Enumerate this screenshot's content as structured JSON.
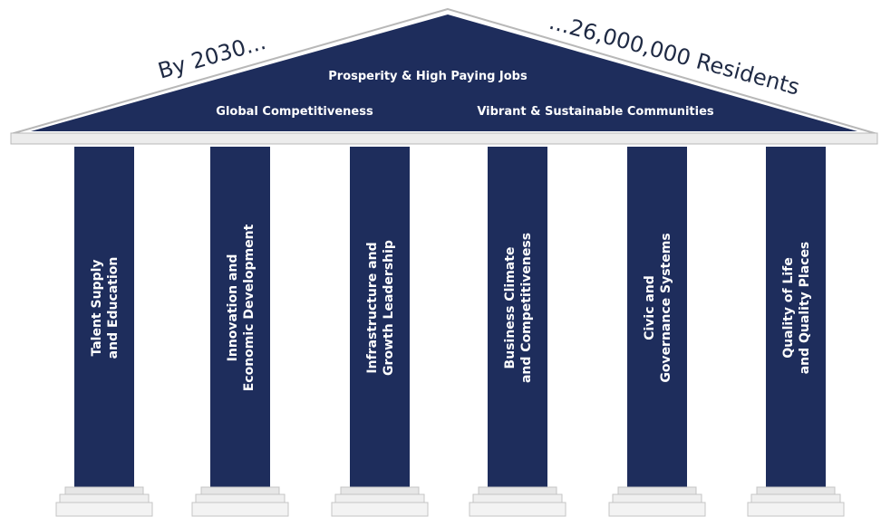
{
  "slogan_left": "By 2030...",
  "slogan_right": "...26,000,000 Residents",
  "roof": {
    "top_line": "Prosperity & High Paying Jobs",
    "left_line": "Global Competitiveness",
    "right_line": "Vibrant &  Sustainable Communities"
  },
  "pillars": [
    {
      "line1": "Talent Supply",
      "line2": "and Education"
    },
    {
      "line1": "Innovation and",
      "line2": "Economic Development"
    },
    {
      "line1": "Infrastructure and",
      "line2": "Growth Leadership"
    },
    {
      "line1": "Business Climate",
      "line2": "and Competitiveness"
    },
    {
      "line1": "Civic and",
      "line2": "Governance Systems"
    },
    {
      "line1": "Quality of Life",
      "line2": "and Quality Places"
    }
  ],
  "colors": {
    "navy": "#1e2d5c",
    "base": "#e6e6e6",
    "text_dark": "#1f2a44"
  }
}
